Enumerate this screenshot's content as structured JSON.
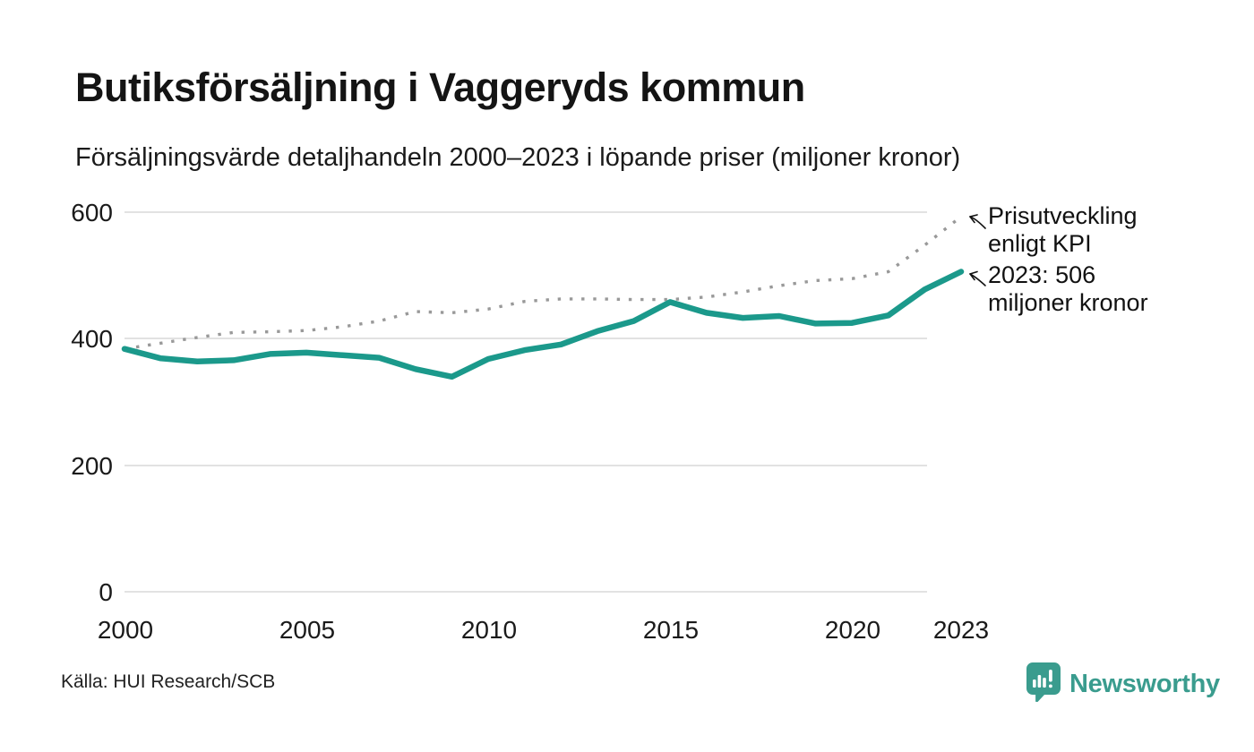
{
  "header": {
    "title": "Butiksförsäljning i Vaggeryds kommun",
    "subtitle": "Försäljningsvärde detaljhandeln 2000–2023 i löpande priser (miljoner kronor)"
  },
  "chart_data": {
    "type": "line",
    "title": "Butiksförsäljning i Vaggeryds kommun",
    "subtitle": "Försäljningsvärde detaljhandeln 2000–2023 i löpande priser (miljoner kronor)",
    "x": [
      2000,
      2001,
      2002,
      2003,
      2004,
      2005,
      2006,
      2007,
      2008,
      2009,
      2010,
      2011,
      2012,
      2013,
      2014,
      2015,
      2016,
      2017,
      2018,
      2019,
      2020,
      2021,
      2022,
      2023
    ],
    "series": [
      {
        "name": "Butiksförsäljning i löpande priser (miljoner kronor)",
        "style": "solid",
        "color": "#1b998b",
        "values": [
          384,
          369,
          364,
          366,
          376,
          378,
          374,
          370,
          352,
          340,
          368,
          382,
          391,
          412,
          428,
          458,
          441,
          433,
          436,
          424,
          425,
          437,
          478,
          506
        ]
      },
      {
        "name": "Prisutveckling enligt KPI",
        "style": "dotted",
        "color": "#999999",
        "values": [
          384,
          393,
          402,
          410,
          411,
          413,
          419,
          428,
          443,
          441,
          447,
          459,
          463,
          463,
          462,
          462,
          466,
          474,
          484,
          492,
          495,
          506,
          548,
          593
        ]
      }
    ],
    "ylim": [
      0,
      600
    ],
    "y_ticks": [
      600,
      400,
      200,
      0
    ],
    "y_tick_labels": [
      "600",
      "400",
      "200",
      "0"
    ],
    "x_tick_years": [
      2000,
      2005,
      2010,
      2015,
      2020,
      2023
    ],
    "x_tick_labels": [
      "2000",
      "2005",
      "2010",
      "2015",
      "2020",
      "2023"
    ],
    "grid": "horizontal",
    "legend_position": "annotations-right",
    "annotations": {
      "kpi": {
        "line1": "Prisutveckling",
        "line2": "enligt KPI"
      },
      "value_2023": {
        "line1": "2023: 506",
        "line2": "miljoner kronor"
      }
    },
    "highlight_value_2023": 506
  },
  "footer": {
    "source": "Källa: HUI Research/SCB",
    "logo_text": "Newsworthy"
  },
  "colors": {
    "sales_line": "#1b998b",
    "kpi_dots": "#999999",
    "gridline": "#e2e2e2",
    "text": "#141414",
    "logo": "#3a9c8e"
  }
}
